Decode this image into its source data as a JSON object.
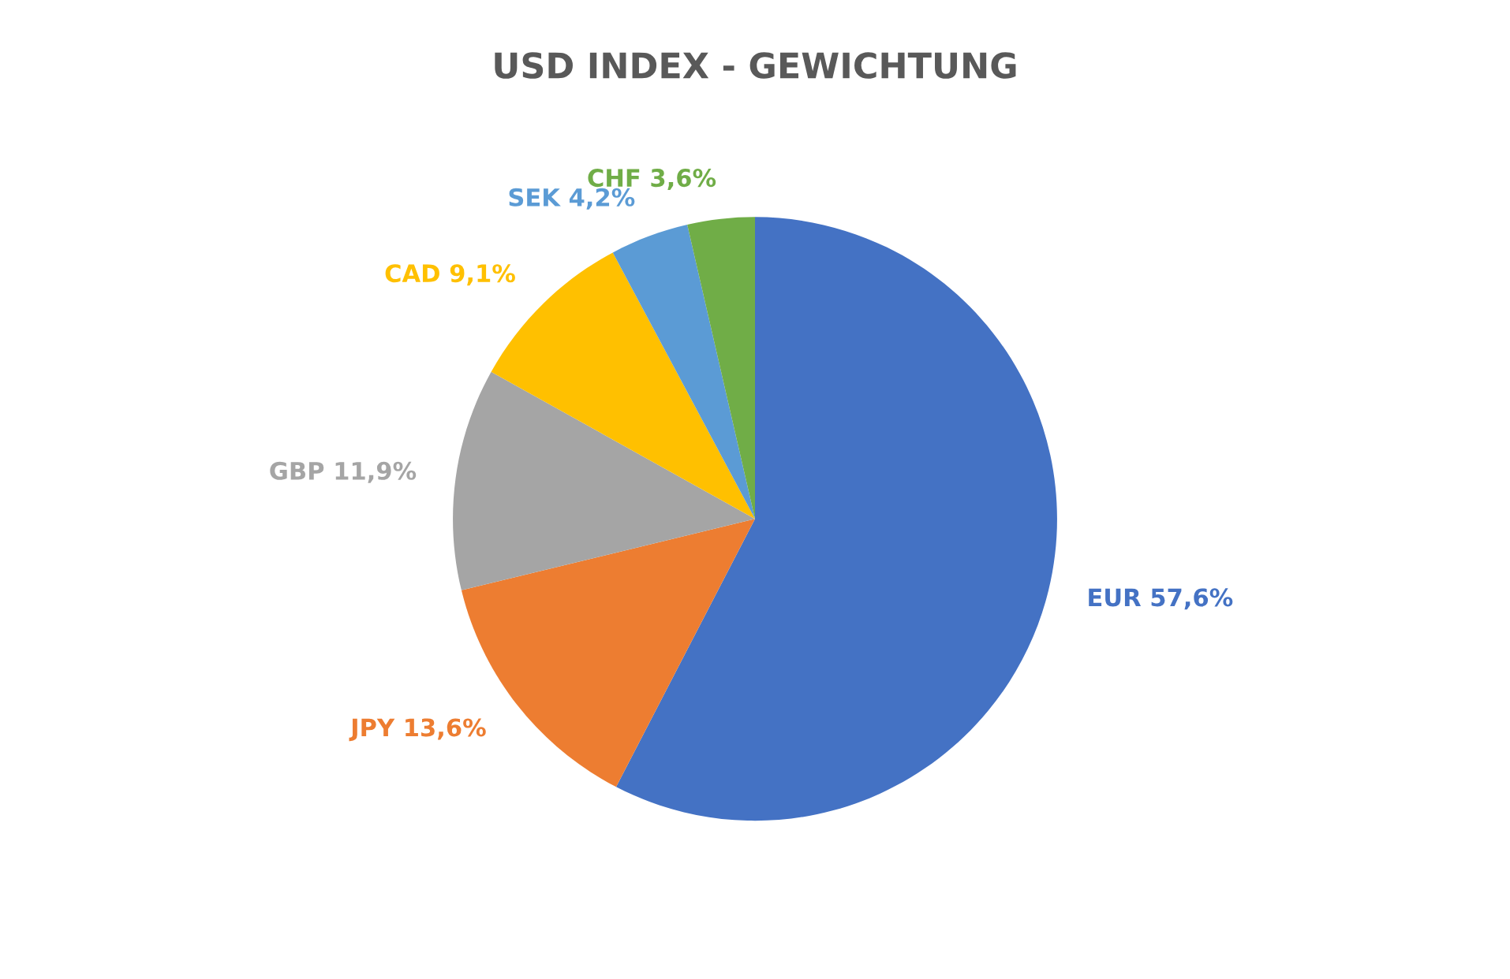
{
  "chart_data": {
    "type": "pie",
    "title": "USD INDEX - GEWICHTUNG",
    "categories": [
      "EUR",
      "JPY",
      "GBP",
      "CAD",
      "SEK",
      "CHF"
    ],
    "values": [
      57.6,
      13.6,
      11.9,
      9.1,
      4.2,
      3.6
    ],
    "value_labels": [
      "57,6%",
      "13,6%",
      "11,9%",
      "9,1%",
      "4,2%",
      "3,6%"
    ],
    "colors": [
      "#4472c4",
      "#ed7d31",
      "#a5a5a5",
      "#ffc000",
      "#5b9bd5",
      "#70ad47"
    ],
    "legend": false
  }
}
